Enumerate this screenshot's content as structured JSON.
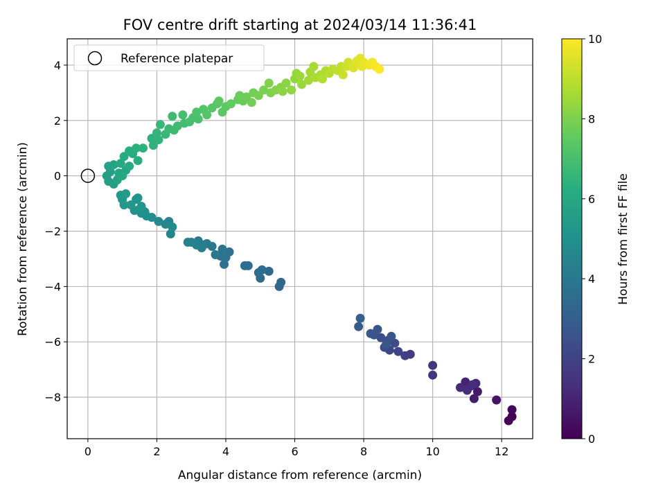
{
  "chart_data": {
    "type": "scatter",
    "title": "FOV centre drift starting at 2024/03/14 11:36:41",
    "xlabel": "Angular distance from reference (arcmin)",
    "ylabel": "Rotation from reference (arcmin)",
    "xlim": [
      -0.6,
      12.9
    ],
    "ylim": [
      -9.5,
      4.95
    ],
    "xticks": [
      0,
      2,
      4,
      6,
      8,
      10,
      12
    ],
    "yticks": [
      -8,
      -6,
      -4,
      -2,
      0,
      2,
      4
    ],
    "grid": true,
    "colormap": "viridis",
    "colorbar": {
      "label": "Hours from first FF file",
      "range": [
        0,
        10
      ],
      "ticks": [
        0,
        2,
        4,
        6,
        8,
        10
      ]
    },
    "legend": {
      "placement": "top-left",
      "entries": [
        {
          "label": "Reference platepar",
          "marker": "open-circle"
        }
      ]
    },
    "reference_point": {
      "x": 0,
      "y": 0
    },
    "points": [
      [
        12.3,
        -8.7,
        0.0
      ],
      [
        12.2,
        -8.85,
        0.1
      ],
      [
        12.3,
        -8.45,
        0.2
      ],
      [
        11.85,
        -8.1,
        0.5
      ],
      [
        11.3,
        -7.8,
        0.7
      ],
      [
        11.2,
        -8.05,
        0.8
      ],
      [
        11.1,
        -7.6,
        0.9
      ],
      [
        10.95,
        -7.45,
        1.0
      ],
      [
        11.25,
        -7.5,
        1.1
      ],
      [
        10.8,
        -7.65,
        1.2
      ],
      [
        11.0,
        -7.75,
        1.25
      ],
      [
        11.15,
        -7.55,
        1.3
      ],
      [
        10.0,
        -7.2,
        1.5
      ],
      [
        10.0,
        -6.85,
        1.6
      ],
      [
        9.35,
        -6.45,
        1.8
      ],
      [
        9.2,
        -6.5,
        1.9
      ],
      [
        9.0,
        -6.35,
        2.0
      ],
      [
        8.75,
        -6.3,
        2.1
      ],
      [
        8.6,
        -6.2,
        2.2
      ],
      [
        8.9,
        -6.05,
        2.3
      ],
      [
        8.7,
        -5.95,
        2.35
      ],
      [
        8.5,
        -5.85,
        2.4
      ],
      [
        8.3,
        -5.75,
        2.5
      ],
      [
        8.4,
        -5.55,
        2.6
      ],
      [
        8.8,
        -5.8,
        2.65
      ],
      [
        8.2,
        -5.7,
        2.7
      ],
      [
        8.65,
        -6.1,
        2.75
      ],
      [
        7.85,
        -5.45,
        2.9
      ],
      [
        7.9,
        -5.15,
        3.0
      ],
      [
        5.6,
        -3.85,
        3.3
      ],
      [
        5.55,
        -4.0,
        3.35
      ],
      [
        5.25,
        -3.45,
        3.4
      ],
      [
        5.0,
        -3.7,
        3.45
      ],
      [
        5.05,
        -3.4,
        3.5
      ],
      [
        4.95,
        -3.5,
        3.55
      ],
      [
        4.65,
        -3.25,
        3.6
      ],
      [
        4.55,
        -3.25,
        3.65
      ],
      [
        4.1,
        -2.75,
        3.7
      ],
      [
        3.95,
        -3.2,
        3.75
      ],
      [
        3.85,
        -2.9,
        3.8
      ],
      [
        3.9,
        -2.65,
        3.85
      ],
      [
        4.0,
        -2.95,
        3.9
      ],
      [
        3.7,
        -2.85,
        3.95
      ],
      [
        3.45,
        -2.45,
        4.0
      ],
      [
        3.6,
        -2.55,
        4.05
      ],
      [
        3.2,
        -2.35,
        4.1
      ],
      [
        3.3,
        -2.6,
        4.15
      ],
      [
        3.35,
        -2.5,
        4.2
      ],
      [
        3.0,
        -2.4,
        4.25
      ],
      [
        2.9,
        -2.4,
        4.3
      ],
      [
        3.15,
        -2.5,
        4.35
      ],
      [
        2.4,
        -2.1,
        4.5
      ],
      [
        2.35,
        -1.65,
        4.55
      ],
      [
        2.25,
        -1.75,
        4.6
      ],
      [
        2.05,
        -1.65,
        4.7
      ],
      [
        2.45,
        -1.85,
        4.75
      ],
      [
        1.85,
        -1.5,
        4.8
      ],
      [
        1.55,
        -1.35,
        4.85
      ],
      [
        1.65,
        -1.3,
        4.9
      ],
      [
        1.7,
        -1.45,
        4.95
      ],
      [
        1.5,
        -1.2,
        5.0
      ],
      [
        1.35,
        -1.25,
        5.05
      ],
      [
        1.4,
        -0.85,
        5.1
      ],
      [
        1.45,
        -0.8,
        5.15
      ],
      [
        1.55,
        -1.1,
        5.2
      ],
      [
        1.25,
        -1.05,
        5.25
      ],
      [
        1.0,
        -0.85,
        5.3
      ],
      [
        1.05,
        -1.05,
        5.35
      ],
      [
        0.95,
        -0.7,
        5.4
      ],
      [
        1.1,
        -0.65,
        5.45
      ],
      [
        0.6,
        -0.2,
        5.5
      ],
      [
        0.75,
        -0.3,
        5.55
      ],
      [
        0.55,
        0.0,
        5.6
      ],
      [
        0.65,
        0.15,
        5.65
      ],
      [
        0.85,
        -0.15,
        5.7
      ],
      [
        0.6,
        0.35,
        5.75
      ],
      [
        0.75,
        0.4,
        5.8
      ],
      [
        0.9,
        0.1,
        5.85
      ],
      [
        1.0,
        0.0,
        5.9
      ],
      [
        1.1,
        0.2,
        5.95
      ],
      [
        0.95,
        0.45,
        6.0
      ],
      [
        1.2,
        0.35,
        6.05
      ],
      [
        1.05,
        0.7,
        6.1
      ],
      [
        1.3,
        0.8,
        6.15
      ],
      [
        1.45,
        0.55,
        6.2
      ],
      [
        1.2,
        0.9,
        6.25
      ],
      [
        1.4,
        1.0,
        6.3
      ],
      [
        1.6,
        1.0,
        6.35
      ],
      [
        1.85,
        1.35,
        6.4
      ],
      [
        1.9,
        1.1,
        6.45
      ],
      [
        2.05,
        1.3,
        6.5
      ],
      [
        2.0,
        1.55,
        6.55
      ],
      [
        2.25,
        1.5,
        6.6
      ],
      [
        2.1,
        1.85,
        6.65
      ],
      [
        2.35,
        1.7,
        6.7
      ],
      [
        2.5,
        1.65,
        6.75
      ],
      [
        2.45,
        2.15,
        6.8
      ],
      [
        2.6,
        1.8,
        6.85
      ],
      [
        2.8,
        1.9,
        6.9
      ],
      [
        2.75,
        2.2,
        6.95
      ],
      [
        2.95,
        1.95,
        7.0
      ],
      [
        3.05,
        2.1,
        7.05
      ],
      [
        3.2,
        2.05,
        7.1
      ],
      [
        3.15,
        2.3,
        7.15
      ],
      [
        3.35,
        2.4,
        7.2
      ],
      [
        3.45,
        2.2,
        7.25
      ],
      [
        3.6,
        2.45,
        7.3
      ],
      [
        3.75,
        2.6,
        7.35
      ],
      [
        3.9,
        2.3,
        7.4
      ],
      [
        3.8,
        2.7,
        7.45
      ],
      [
        4.0,
        2.5,
        7.5
      ],
      [
        4.15,
        2.6,
        7.55
      ],
      [
        4.35,
        2.75,
        7.6
      ],
      [
        4.5,
        2.7,
        7.65
      ],
      [
        4.4,
        2.9,
        7.7
      ],
      [
        4.6,
        2.85,
        7.75
      ],
      [
        4.8,
        3.0,
        7.8
      ],
      [
        4.75,
        2.65,
        7.85
      ],
      [
        4.95,
        2.9,
        7.9
      ],
      [
        5.1,
        3.1,
        7.95
      ],
      [
        5.3,
        3.0,
        8.0
      ],
      [
        5.25,
        3.35,
        8.05
      ],
      [
        5.45,
        3.1,
        8.1
      ],
      [
        5.6,
        3.2,
        8.15
      ],
      [
        5.75,
        3.35,
        8.2
      ],
      [
        5.65,
        3.05,
        8.25
      ],
      [
        5.9,
        3.1,
        8.3
      ],
      [
        6.0,
        3.5,
        8.35
      ],
      [
        6.05,
        3.7,
        8.4
      ],
      [
        6.2,
        3.3,
        8.45
      ],
      [
        6.15,
        3.6,
        8.5
      ],
      [
        6.4,
        3.45,
        8.55
      ],
      [
        6.45,
        3.75,
        8.6
      ],
      [
        6.55,
        3.95,
        8.65
      ],
      [
        6.6,
        3.55,
        8.7
      ],
      [
        6.75,
        3.65,
        8.75
      ],
      [
        6.9,
        3.8,
        8.8
      ],
      [
        6.8,
        3.5,
        8.85
      ],
      [
        7.0,
        3.7,
        8.9
      ],
      [
        7.1,
        3.85,
        8.95
      ],
      [
        7.25,
        3.8,
        9.0
      ],
      [
        7.35,
        3.95,
        9.1
      ],
      [
        7.4,
        3.65,
        9.2
      ],
      [
        7.5,
        3.95,
        9.3
      ],
      [
        7.55,
        4.1,
        9.35
      ],
      [
        7.7,
        3.9,
        9.45
      ],
      [
        7.8,
        4.15,
        9.55
      ],
      [
        7.9,
        4.25,
        9.6
      ],
      [
        7.95,
        3.95,
        9.65
      ],
      [
        8.0,
        4.1,
        9.7
      ],
      [
        8.15,
        4.0,
        9.8
      ],
      [
        8.25,
        4.1,
        9.85
      ],
      [
        8.35,
        3.95,
        9.9
      ],
      [
        8.45,
        3.85,
        9.95
      ]
    ]
  }
}
